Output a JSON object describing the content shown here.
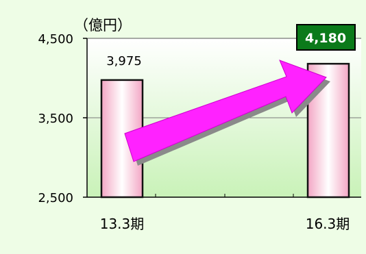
{
  "chart_data": {
    "type": "bar",
    "unit_label": "（億円）",
    "categories": [
      "13.3期",
      "16.3期"
    ],
    "values": [
      3975,
      4180
    ],
    "value_labels": [
      "3,975",
      "4,180"
    ],
    "y_ticks": [
      2500,
      3500,
      4500
    ],
    "y_tick_labels": [
      "2,500",
      "3,500",
      "4,500"
    ],
    "ylim": [
      2500,
      4500
    ],
    "grid": true,
    "colors": {
      "page_background": "#eefde6",
      "plot_background_top": "#ffffff",
      "plot_background_bottom": "#c9f2b8",
      "bar_edge": "#111111",
      "bar_center": "#ffffff",
      "bar_side": "#f3a6c4",
      "arrow_fill": "#ff22ff",
      "arrow_shadow": "#8a8a8a",
      "highlight_label_bg": "#0b7a1a",
      "highlight_label_text": "#ffffff"
    }
  }
}
